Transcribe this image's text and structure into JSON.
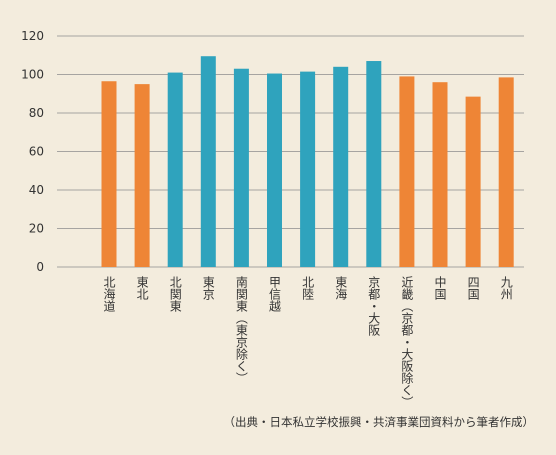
{
  "chart_data": {
    "type": "bar",
    "categories": [
      "北海道",
      "東北",
      "北関東",
      "東京",
      "南関東（東京除く）",
      "甲信越",
      "北陸",
      "東海",
      "京都・大阪",
      "近畿（京都・大阪除く）",
      "中国",
      "四国",
      "九州"
    ],
    "values": [
      96.5,
      95,
      101,
      109.5,
      103,
      100.5,
      101.5,
      104,
      107,
      99,
      96,
      88.5,
      98.5
    ],
    "bar_colors": [
      "#ee8536",
      "#ee8536",
      "#2fa3bd",
      "#2fa3bd",
      "#2fa3bd",
      "#2fa3bd",
      "#2fa3bd",
      "#2fa3bd",
      "#2fa3bd",
      "#ee8536",
      "#ee8536",
      "#ee8536",
      "#ee8536"
    ],
    "ylim": [
      0,
      120
    ],
    "yticks": [
      0,
      20,
      40,
      60,
      80,
      100,
      120
    ],
    "grid": true,
    "title": "",
    "xlabel": "",
    "ylabel": ""
  },
  "source_note": "（出典・日本私立学校振興・共済事業団資料から筆者作成）",
  "colors": {
    "background": "#f3ecdd",
    "gridline": "#8c8c8c",
    "text": "#333333"
  }
}
